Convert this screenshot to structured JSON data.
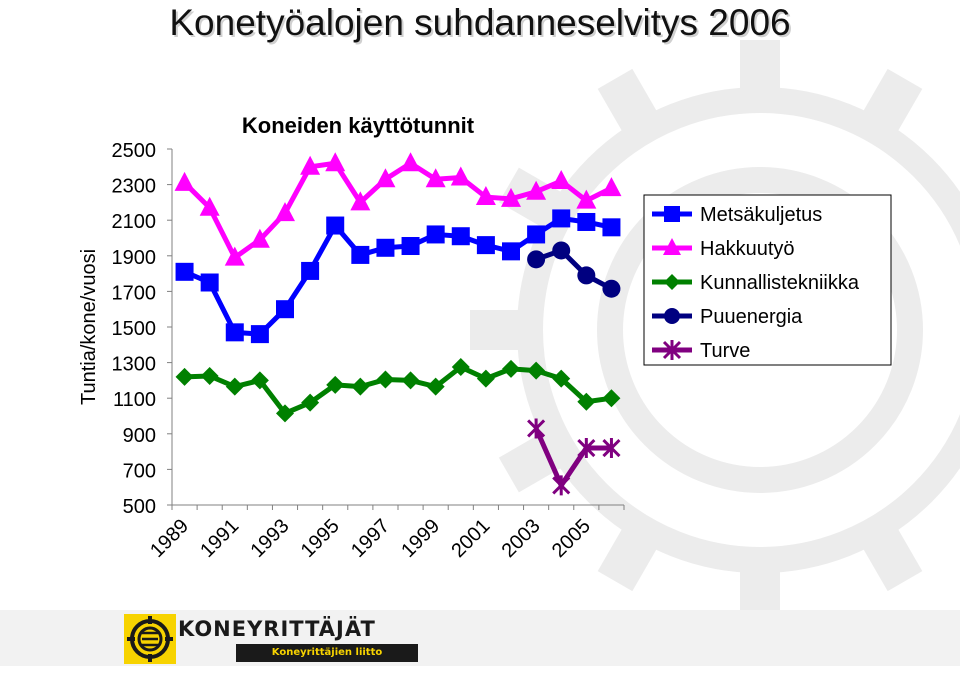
{
  "slide": {
    "title": "Konetyöalojen suhdanneselvitys 2006"
  },
  "logo": {
    "name": "KONEYRITTÄJÄT",
    "subtitle": "Koneyrittäjien liitto"
  },
  "colors": {
    "gear_background": "#ececec",
    "logo_yellow": "#f7d300",
    "axis": "#808080"
  },
  "chart_data": {
    "type": "line",
    "title": "Koneiden käyttötunnit",
    "xlabel": "",
    "ylabel": "Tuntia/kone/vuosi",
    "ylim": [
      500,
      2500
    ],
    "yticks": [
      2500,
      2300,
      2100,
      1900,
      1700,
      1500,
      1300,
      1100,
      900,
      700,
      500
    ],
    "x": [
      1989,
      1990,
      1991,
      1992,
      1993,
      1994,
      1995,
      1996,
      1997,
      1998,
      1999,
      2000,
      2001,
      2002,
      2003,
      2004,
      2005,
      2006
    ],
    "xtick_labels": [
      "1989",
      "1991",
      "1993",
      "1995",
      "1997",
      "1999",
      "2001",
      "2003",
      "2005"
    ],
    "grid": false,
    "legend_position": "right",
    "series": [
      {
        "name": "Metsäkuljetus",
        "color": "#0000ff",
        "marker": "square",
        "values": [
          1810,
          1750,
          1470,
          1460,
          1600,
          1815,
          2070,
          1905,
          1945,
          1955,
          2020,
          2010,
          1960,
          1925,
          2020,
          2110,
          2090,
          2060
        ]
      },
      {
        "name": "Hakkuutyö",
        "color": "#ff00ff",
        "marker": "triangle",
        "values": [
          2310,
          2170,
          1890,
          1990,
          2140,
          2400,
          2420,
          2200,
          2330,
          2420,
          2330,
          2340,
          2230,
          2220,
          2260,
          2320,
          2210,
          2280
        ]
      },
      {
        "name": "Kunnallistekniikka",
        "color": "#008000",
        "marker": "diamond",
        "values": [
          1220,
          1225,
          1165,
          1200,
          1015,
          1075,
          1175,
          1165,
          1205,
          1200,
          1165,
          1275,
          1210,
          1265,
          1255,
          1210,
          1080,
          1100
        ]
      },
      {
        "name": "Puuenergia",
        "color": "#000080",
        "marker": "circle",
        "values": [
          null,
          null,
          null,
          null,
          null,
          null,
          null,
          null,
          null,
          null,
          null,
          null,
          null,
          null,
          1880,
          1930,
          1790,
          1715
        ]
      },
      {
        "name": "Turve",
        "color": "#800080",
        "marker": "star",
        "values": [
          null,
          null,
          null,
          null,
          null,
          null,
          null,
          null,
          null,
          null,
          null,
          null,
          null,
          null,
          930,
          610,
          820,
          820
        ]
      }
    ]
  }
}
